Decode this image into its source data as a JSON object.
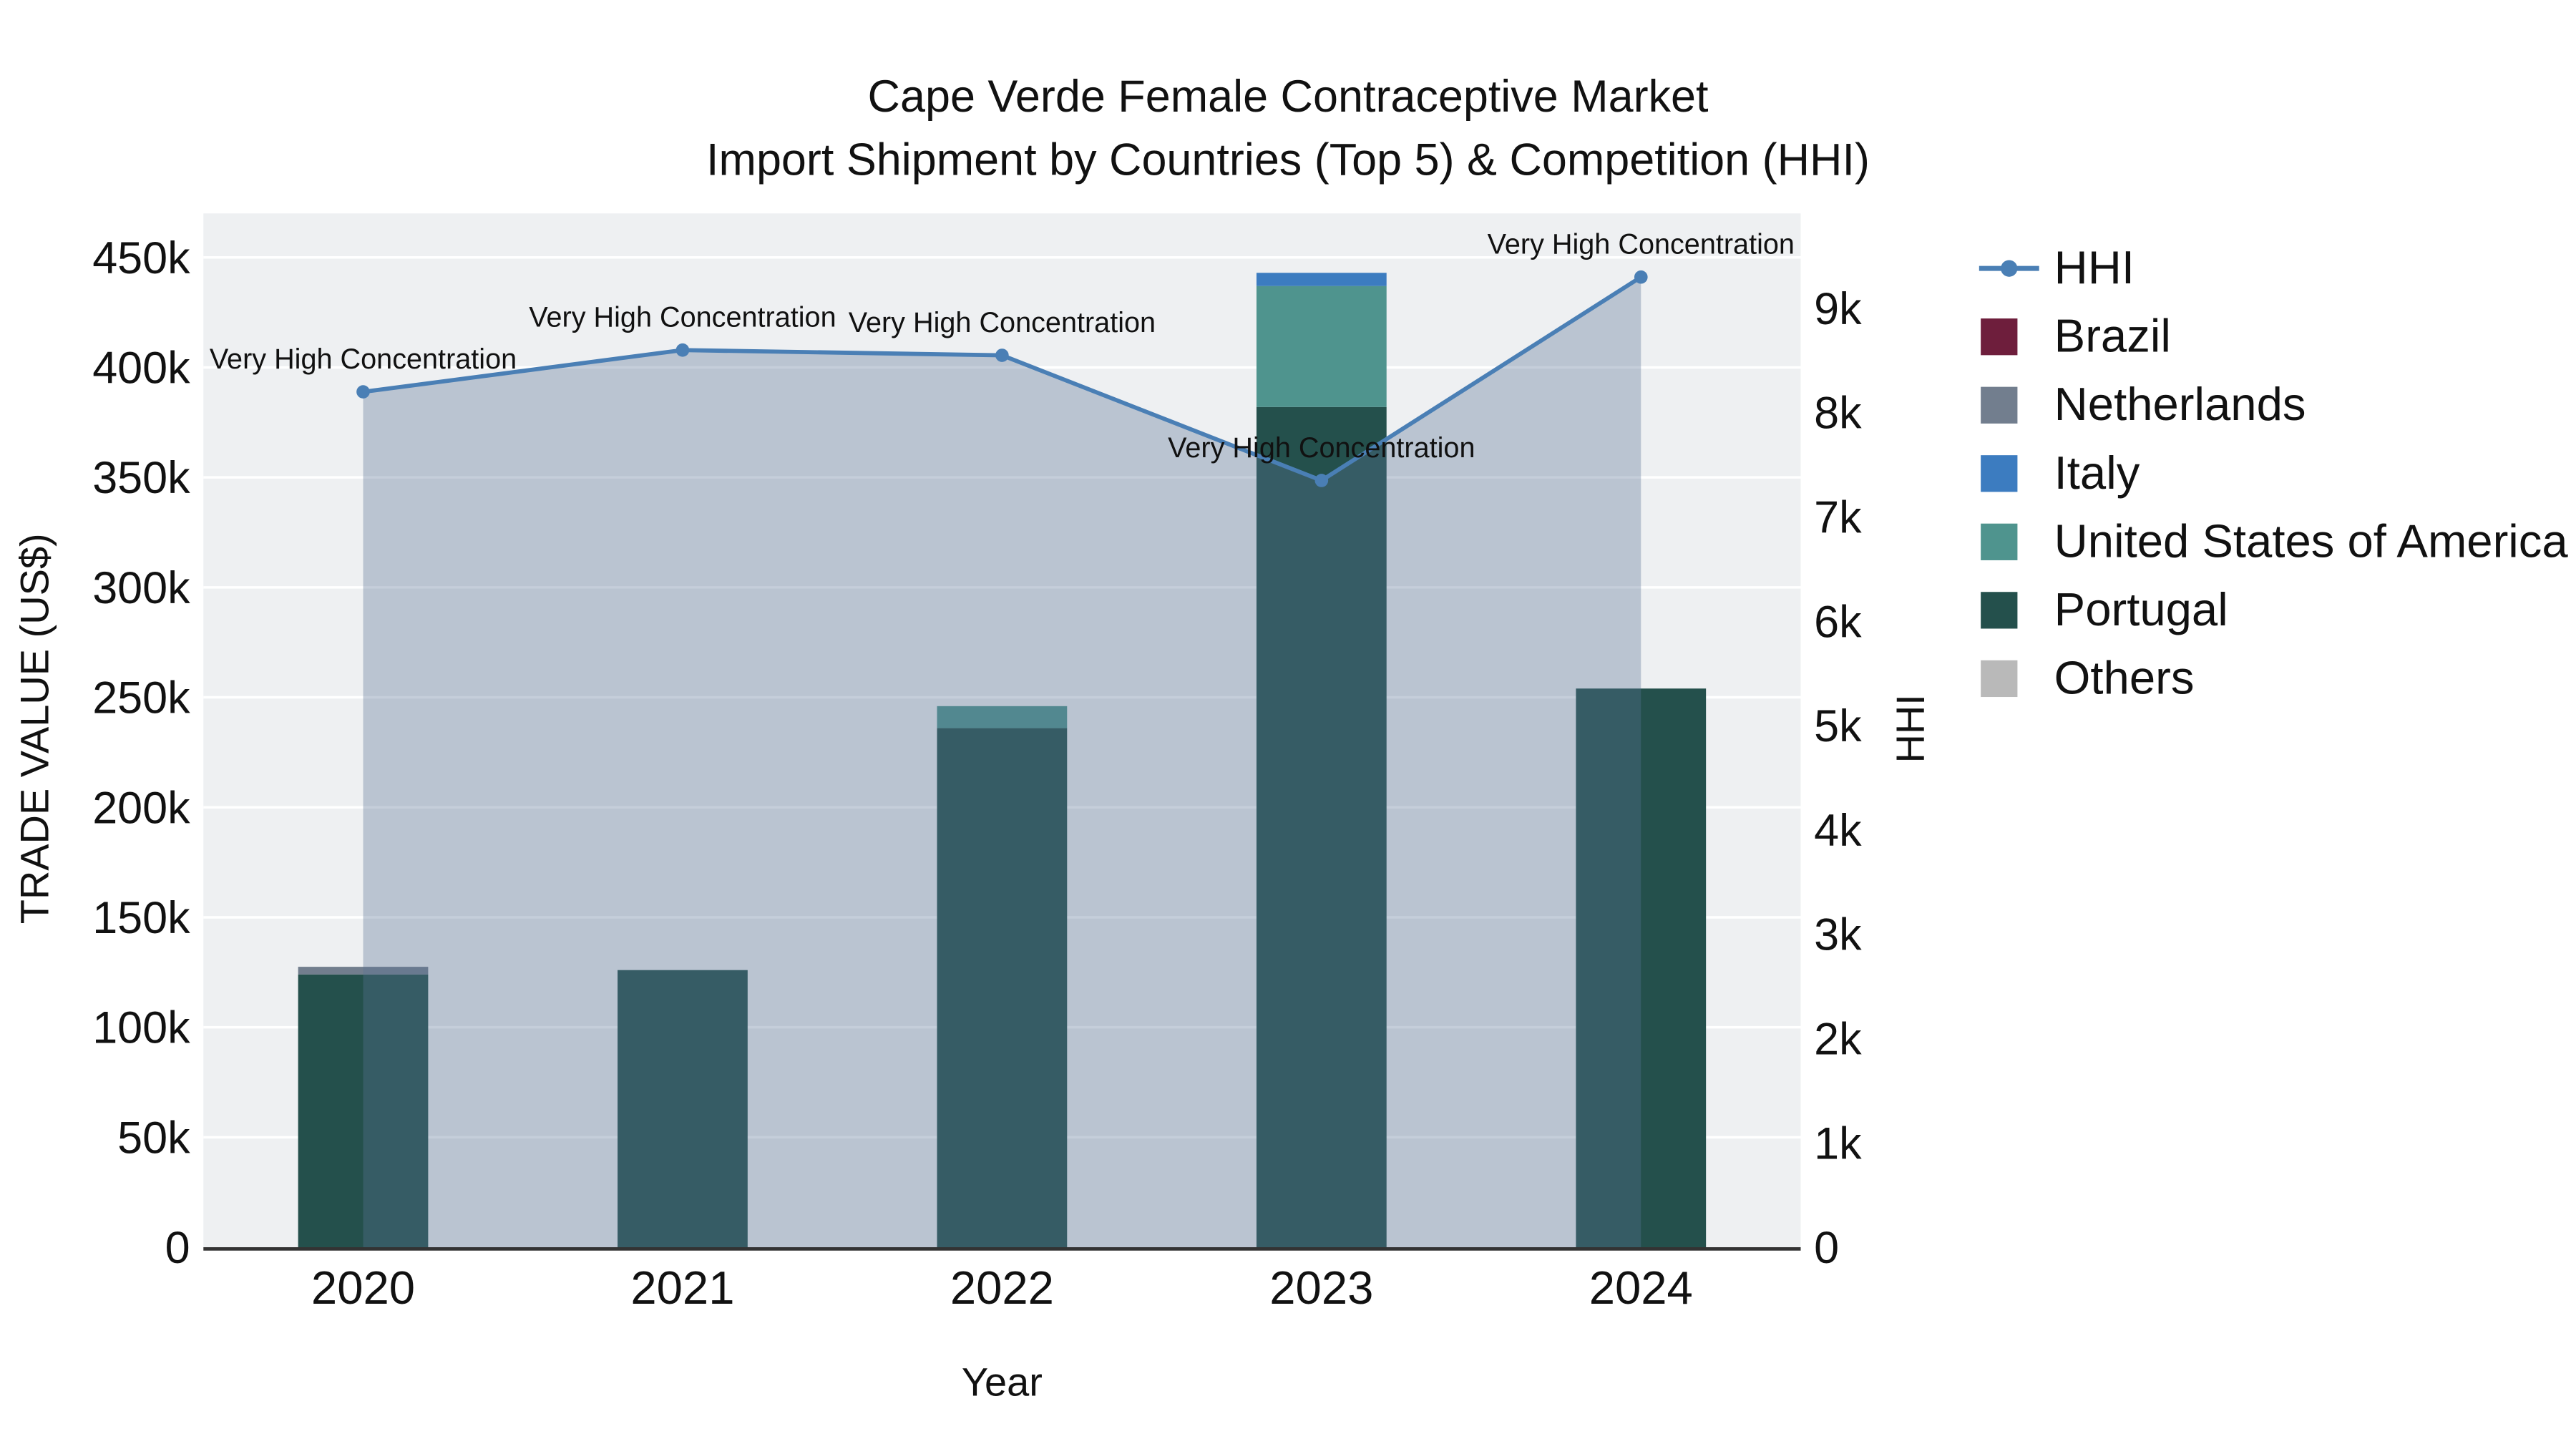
{
  "title": {
    "line1": "Cape Verde Female Contraceptive Market",
    "line2": "Import Shipment by Countries (Top 5) & Competition (HHI)"
  },
  "chart_data": {
    "type": "stacked-bar+line",
    "x_title": "Year",
    "categories": [
      "2020",
      "2021",
      "2022",
      "2023",
      "2024"
    ],
    "left_axis": {
      "title": "TRADE VALUE (US$)",
      "range": [
        0,
        470000
      ],
      "ticks": [
        {
          "v": 0,
          "t": "0"
        },
        {
          "v": 50000,
          "t": "50k"
        },
        {
          "v": 100000,
          "t": "100k"
        },
        {
          "v": 150000,
          "t": "150k"
        },
        {
          "v": 200000,
          "t": "200k"
        },
        {
          "v": 250000,
          "t": "250k"
        },
        {
          "v": 300000,
          "t": "300k"
        },
        {
          "v": 350000,
          "t": "350k"
        },
        {
          "v": 400000,
          "t": "400k"
        },
        {
          "v": 450000,
          "t": "450k"
        }
      ]
    },
    "right_axis": {
      "title": "HHI",
      "range": [
        0,
        9910
      ],
      "ticks": [
        {
          "v": 0,
          "t": "0"
        },
        {
          "v": 1000,
          "t": "1k"
        },
        {
          "v": 2000,
          "t": "2k"
        },
        {
          "v": 3000,
          "t": "3k"
        },
        {
          "v": 4000,
          "t": "4k"
        },
        {
          "v": 5000,
          "t": "5k"
        },
        {
          "v": 6000,
          "t": "6k"
        },
        {
          "v": 7000,
          "t": "7k"
        },
        {
          "v": 8000,
          "t": "8k"
        },
        {
          "v": 9000,
          "t": "9k"
        }
      ]
    },
    "series": [
      {
        "name": "Portugal",
        "color": "#24504c",
        "values": [
          124000,
          126000,
          236000,
          382000,
          254000
        ]
      },
      {
        "name": "United States of America",
        "color": "#4f948e",
        "values": [
          0,
          0,
          10000,
          55000,
          0
        ]
      },
      {
        "name": "Italy",
        "color": "#3c7cc0",
        "values": [
          0,
          0,
          0,
          6000,
          0
        ]
      },
      {
        "name": "Netherlands",
        "color": "#727e8e",
        "values": [
          3500,
          0,
          0,
          0,
          0
        ]
      },
      {
        "name": "Brazil",
        "color": "#6e1e3c",
        "values": [
          0,
          0,
          0,
          0,
          0
        ]
      },
      {
        "name": "Others",
        "color": "#b9b9b9",
        "values": [
          0,
          0,
          0,
          0,
          0
        ]
      }
    ],
    "hhi_line": {
      "name": "HHI",
      "color": "#4a7fb5",
      "area_fill": "#5a7396",
      "area_opacity": 0.35,
      "values": [
        8200,
        8600,
        8550,
        7350,
        9300
      ]
    },
    "annotations": [
      "Very High Concentration",
      "Very High Concentration",
      "Very High Concentration",
      "Very High Concentration",
      "Very High Concentration"
    ]
  },
  "legend": {
    "items": [
      {
        "label": "HHI",
        "type": "line",
        "color": "#4a7fb5"
      },
      {
        "label": "Brazil",
        "type": "square",
        "color": "#6e1e3c"
      },
      {
        "label": "Netherlands",
        "type": "square",
        "color": "#727e8e"
      },
      {
        "label": "Italy",
        "type": "square",
        "color": "#3c7cc0"
      },
      {
        "label": "United States of America",
        "type": "square",
        "color": "#4f948e"
      },
      {
        "label": "Portugal",
        "type": "square",
        "color": "#24504c"
      },
      {
        "label": "Others",
        "type": "square",
        "color": "#b9b9b9"
      }
    ]
  },
  "style": {
    "plot_bg": "#eef0f2",
    "grid_color": "#ffffff",
    "axis_line_color": "#333333",
    "annotation_color": "#000000"
  }
}
